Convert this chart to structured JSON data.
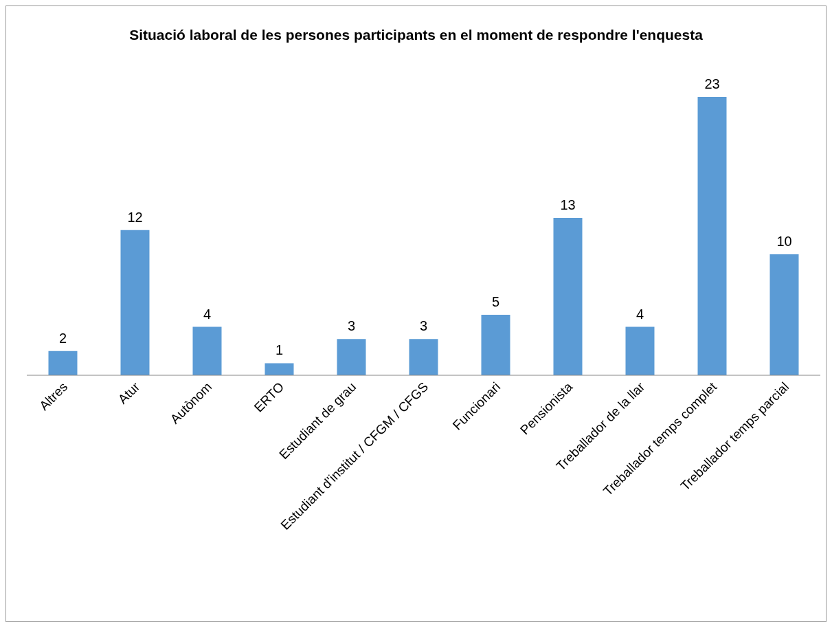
{
  "chart_data": {
    "type": "bar",
    "title": "Situació laboral de les persones participants en el moment de respondre l'enquesta",
    "categories": [
      "Altres",
      "Atur",
      "Autònom",
      "ERTO",
      "Estudiant de grau",
      "Estudiant d'institut / CFGM / CFGS",
      "Funcionari",
      "Pensionista",
      "Treballador de la llar",
      "Treballador temps complet",
      "Treballador temps parcial"
    ],
    "values": [
      2,
      12,
      4,
      1,
      3,
      3,
      5,
      13,
      4,
      23,
      10
    ],
    "color": "#5b9bd5",
    "data_labels": true,
    "legend": false,
    "grid": false
  }
}
